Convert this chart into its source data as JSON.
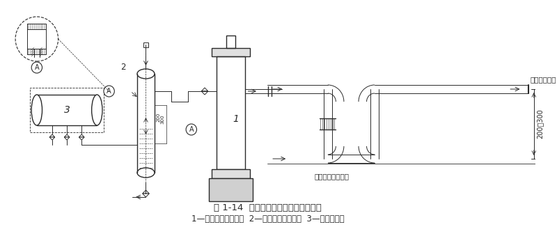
{
  "title_line1": "图 1-14  洗涤式氨油分离器安装示意图",
  "title_line2": "1—立式壳管式冷凝器  2—洗涤式氨油分离器  3—高压贮液桶",
  "label_1": "1",
  "label_2": "2",
  "label_3": "3",
  "label_A": "A",
  "label_200_300": "200～300",
  "label_outlet": "冷凝器出液管",
  "label_inlet": "油氨分离器进液管",
  "bg_color": "#ffffff",
  "line_color": "#2a2a2a",
  "title_fontsize": 9.5,
  "subtitle_fontsize": 8.5
}
